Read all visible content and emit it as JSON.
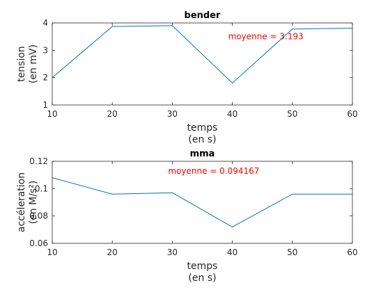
{
  "chart_data": [
    {
      "type": "line",
      "title": "bender",
      "xlabel": [
        "temps",
        "(en s)"
      ],
      "ylabel": [
        "tension",
        "(en mV)"
      ],
      "x": [
        10,
        20,
        30,
        40,
        50,
        60
      ],
      "series": [
        {
          "values": [
            2.0,
            3.87,
            3.9,
            1.8,
            3.78,
            3.81
          ],
          "color": "#0072bd"
        }
      ],
      "xlim": [
        10,
        60
      ],
      "ylim": [
        1,
        4
      ],
      "xticks": [
        "10",
        "20",
        "30",
        "40",
        "50",
        "60"
      ],
      "yticks": [
        "1",
        "2",
        "3",
        "4"
      ],
      "annotation": {
        "text": "moyenne =  3.193",
        "x": 40,
        "y": 3.5,
        "color": "#ff0000"
      },
      "grid": false,
      "legend": "none"
    },
    {
      "type": "line",
      "title": "mma",
      "xlabel": [
        "temps",
        "(en s)"
      ],
      "ylabel": [
        "accéleration",
        "(en M/s²)"
      ],
      "x": [
        10,
        20,
        30,
        40,
        50,
        60
      ],
      "series": [
        {
          "values": [
            0.108,
            0.096,
            0.097,
            0.072,
            0.096,
            0.096
          ],
          "color": "#0072bd"
        }
      ],
      "xlim": [
        10,
        60
      ],
      "ylim": [
        0.06,
        0.12
      ],
      "xticks": [
        "10",
        "20",
        "30",
        "40",
        "50",
        "60"
      ],
      "yticks": [
        "0.06",
        "0.08",
        "0.1",
        "0.12"
      ],
      "annotation": {
        "text": "moyenne =  0.094167",
        "x": 30,
        "y": 0.113,
        "color": "#ff0000"
      },
      "grid": false,
      "legend": "none"
    }
  ]
}
